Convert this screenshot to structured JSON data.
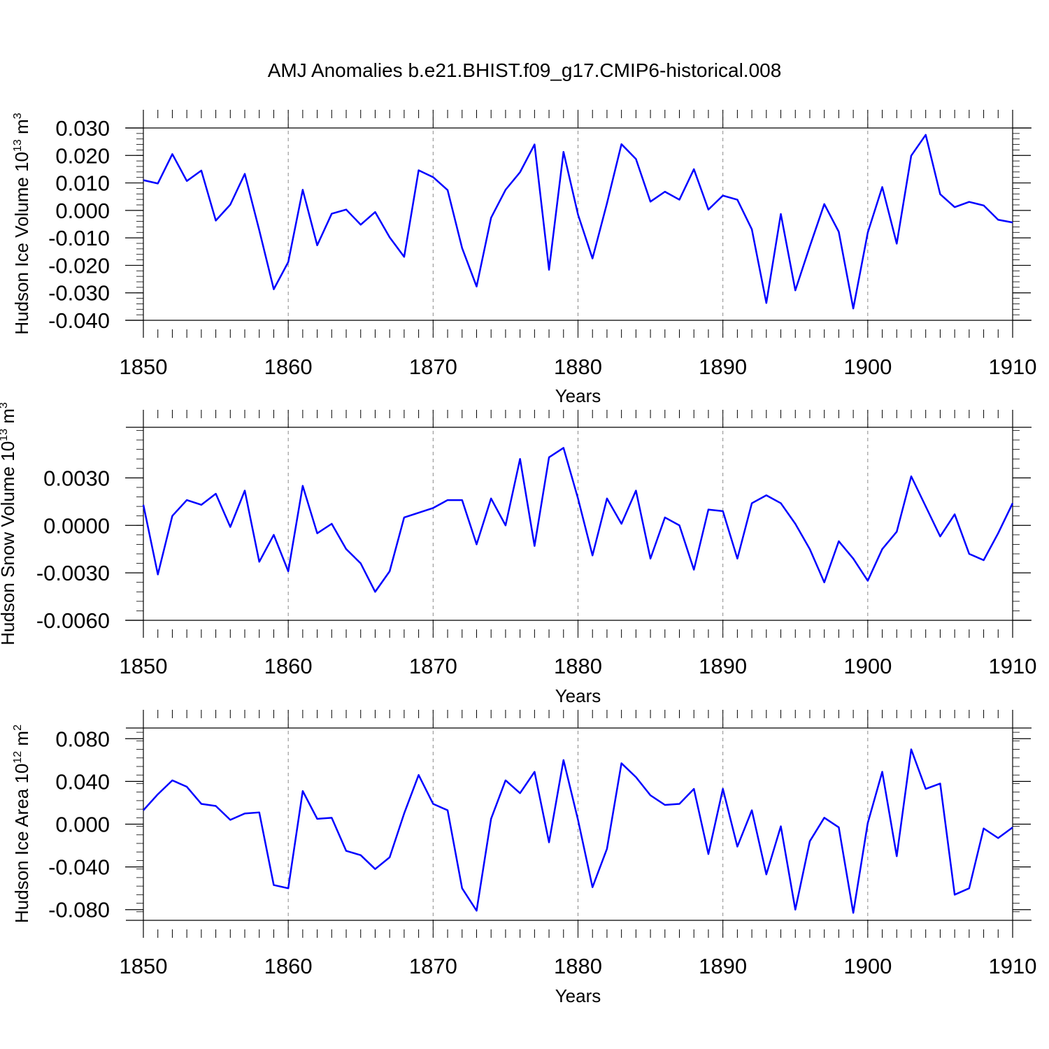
{
  "title": "AMJ Anomalies b.e21.BHIST.f09_g17.CMIP6-historical.008",
  "colors": {
    "line": "#0000ff",
    "frame": "#000000",
    "grid": "#888888"
  },
  "chart_data": [
    {
      "type": "line",
      "ylabel": "Hudson Ice Volume 10",
      "yunit_exp": "13",
      "yunit_suffix": " m",
      "yunit_power": "3",
      "xlabel": "Years",
      "xlim": [
        1850,
        1910
      ],
      "ylim": [
        -0.04,
        0.03
      ],
      "yticks": [
        -0.04,
        -0.03,
        -0.02,
        -0.01,
        0.0,
        0.01,
        0.02,
        0.03
      ],
      "yticklabels": [
        "-0.040",
        "-0.030",
        "-0.020",
        "-0.010",
        "0.000",
        "0.010",
        "0.020",
        "0.030"
      ],
      "xticks": [
        1850,
        1860,
        1870,
        1880,
        1890,
        1900,
        1910
      ],
      "xticklabels": [
        "1850",
        "1860",
        "1870",
        "1880",
        "1890",
        "1900",
        "1910"
      ],
      "x": [
        1850,
        1851,
        1852,
        1853,
        1854,
        1855,
        1856,
        1857,
        1858,
        1859,
        1860,
        1861,
        1862,
        1863,
        1864,
        1865,
        1866,
        1867,
        1868,
        1869,
        1870,
        1871,
        1872,
        1873,
        1874,
        1875,
        1876,
        1877,
        1878,
        1879,
        1880,
        1881,
        1882,
        1883,
        1884,
        1885,
        1886,
        1887,
        1888,
        1889,
        1890,
        1891,
        1892,
        1893,
        1894,
        1895,
        1896,
        1897,
        1898,
        1899,
        1900,
        1901,
        1902,
        1903,
        1904,
        1905,
        1906,
        1907,
        1908,
        1909,
        1910
      ],
      "values": [
        0.011,
        0.0098,
        0.0205,
        0.0107,
        0.0145,
        -0.0037,
        0.0021,
        0.0133,
        -0.0072,
        -0.0287,
        -0.0188,
        0.0075,
        -0.0127,
        -0.0012,
        0.0003,
        -0.0052,
        -0.0006,
        -0.0098,
        -0.0169,
        0.0146,
        0.0121,
        0.0074,
        -0.0137,
        -0.0277,
        -0.0027,
        0.0075,
        0.0139,
        0.024,
        -0.0216,
        0.0213,
        -0.0015,
        -0.0175,
        0.0026,
        0.0241,
        0.0187,
        0.0032,
        0.0068,
        0.0039,
        0.015,
        0.0003,
        0.0054,
        0.0039,
        -0.0069,
        -0.0337,
        -0.0013,
        -0.0291,
        -0.0131,
        0.0023,
        -0.0078,
        -0.0357,
        -0.0081,
        0.0085,
        -0.0121,
        0.0199,
        0.0275,
        0.0059,
        0.0012,
        0.0031,
        0.0018,
        -0.0034,
        -0.0044
      ]
    },
    {
      "type": "line",
      "ylabel": "Hudson Snow Volume 10",
      "yunit_exp": "13",
      "yunit_suffix": " m",
      "yunit_power": "3",
      "xlabel": "Years",
      "xlim": [
        1850,
        1910
      ],
      "ylim": [
        -0.006,
        0.0062
      ],
      "yticks": [
        -0.006,
        -0.003,
        0.0,
        0.003
      ],
      "yticklabels": [
        "-0.0060",
        "-0.0030",
        "0.0000",
        "0.0030"
      ],
      "xticks": [
        1850,
        1860,
        1870,
        1880,
        1890,
        1900,
        1910
      ],
      "xticklabels": [
        "1850",
        "1860",
        "1870",
        "1880",
        "1890",
        "1900",
        "1910"
      ],
      "x": [
        1850,
        1851,
        1852,
        1853,
        1854,
        1855,
        1856,
        1857,
        1858,
        1859,
        1860,
        1861,
        1862,
        1863,
        1864,
        1865,
        1866,
        1867,
        1868,
        1869,
        1870,
        1871,
        1872,
        1873,
        1874,
        1875,
        1876,
        1877,
        1878,
        1879,
        1880,
        1881,
        1882,
        1883,
        1884,
        1885,
        1886,
        1887,
        1888,
        1889,
        1890,
        1891,
        1892,
        1893,
        1894,
        1895,
        1896,
        1897,
        1898,
        1899,
        1900,
        1901,
        1902,
        1903,
        1904,
        1905,
        1906,
        1907,
        1908,
        1909,
        1910
      ],
      "values": [
        0.0013,
        -0.0031,
        0.0006,
        0.0016,
        0.0013,
        0.002,
        -0.0001,
        0.0022,
        -0.0023,
        -0.0006,
        -0.0029,
        0.0025,
        -0.0005,
        0.0001,
        -0.0015,
        -0.0024,
        -0.0042,
        -0.0029,
        0.0005,
        0.0008,
        0.0011,
        0.0016,
        0.0016,
        -0.0012,
        0.0017,
        0.0,
        0.0042,
        -0.0013,
        0.0043,
        0.0049,
        0.0017,
        -0.0019,
        0.0017,
        0.0001,
        0.0022,
        -0.0021,
        0.0005,
        0.0,
        -0.0028,
        0.001,
        0.0009,
        -0.0021,
        0.0014,
        0.0019,
        0.0014,
        0.0001,
        -0.0015,
        -0.0036,
        -0.001,
        -0.0021,
        -0.0035,
        -0.0015,
        -0.0004,
        0.0031,
        0.0012,
        -0.0007,
        0.0007,
        -0.0018,
        -0.0022,
        -0.0005,
        0.0014
      ]
    },
    {
      "type": "line",
      "ylabel": "Hudson Ice Area 10",
      "yunit_exp": "12",
      "yunit_suffix": " m",
      "yunit_power": "2",
      "xlabel": "Years",
      "xlim": [
        1850,
        1910
      ],
      "ylim": [
        -0.09,
        0.09
      ],
      "yticks": [
        -0.08,
        -0.04,
        0.0,
        0.04,
        0.08
      ],
      "yticklabels": [
        "-0.080",
        "-0.040",
        "0.000",
        "0.040",
        "0.080"
      ],
      "xticks": [
        1850,
        1860,
        1870,
        1880,
        1890,
        1900,
        1910
      ],
      "xticklabels": [
        "1850",
        "1860",
        "1870",
        "1880",
        "1890",
        "1900",
        "1910"
      ],
      "x": [
        1850,
        1851,
        1852,
        1853,
        1854,
        1855,
        1856,
        1857,
        1858,
        1859,
        1860,
        1861,
        1862,
        1863,
        1864,
        1865,
        1866,
        1867,
        1868,
        1869,
        1870,
        1871,
        1872,
        1873,
        1874,
        1875,
        1876,
        1877,
        1878,
        1879,
        1880,
        1881,
        1882,
        1883,
        1884,
        1885,
        1886,
        1887,
        1888,
        1889,
        1890,
        1891,
        1892,
        1893,
        1894,
        1895,
        1896,
        1897,
        1898,
        1899,
        1900,
        1901,
        1902,
        1903,
        1904,
        1905,
        1906,
        1907,
        1908,
        1909,
        1910
      ],
      "values": [
        0.013,
        0.028,
        0.041,
        0.035,
        0.019,
        0.017,
        0.004,
        0.01,
        0.011,
        -0.057,
        -0.06,
        0.031,
        0.005,
        0.006,
        -0.025,
        -0.029,
        -0.042,
        -0.031,
        0.01,
        0.046,
        0.019,
        0.013,
        -0.06,
        -0.081,
        0.005,
        0.041,
        0.029,
        0.049,
        -0.017,
        0.06,
        0.004,
        -0.059,
        -0.023,
        0.057,
        0.044,
        0.027,
        0.018,
        0.019,
        0.033,
        -0.028,
        0.033,
        -0.021,
        0.013,
        -0.047,
        -0.002,
        -0.08,
        -0.016,
        0.006,
        -0.003,
        -0.083,
        0.001,
        0.049,
        -0.03,
        0.07,
        0.033,
        0.038,
        -0.066,
        -0.06,
        -0.004,
        -0.013,
        -0.003
      ]
    }
  ]
}
